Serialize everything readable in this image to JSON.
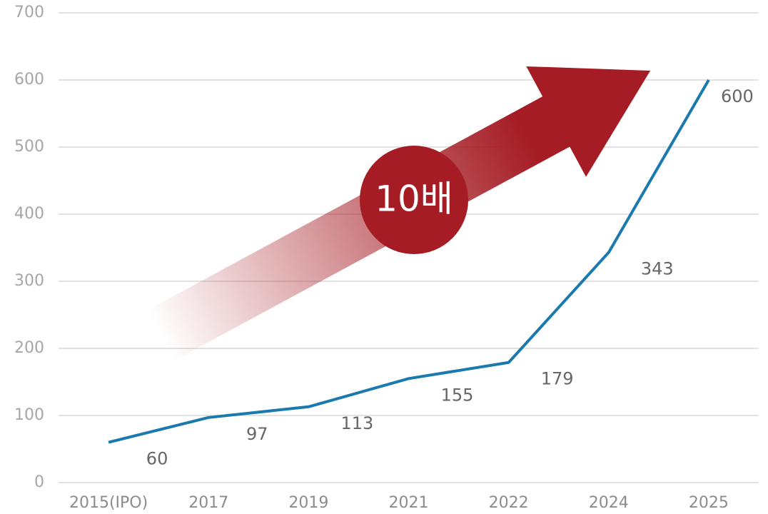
{
  "chart_data": {
    "type": "line",
    "categories": [
      "2015(IPO)",
      "2017",
      "2019",
      "2021",
      "2022",
      "2024",
      "2025"
    ],
    "values": [
      60,
      97,
      113,
      155,
      179,
      343,
      600
    ],
    "color": "#1a7aae",
    "ylim": [
      0,
      700
    ],
    "yticks": [
      0,
      100,
      200,
      300,
      400,
      500,
      600,
      700
    ],
    "grid": true,
    "annotation": "10배"
  }
}
